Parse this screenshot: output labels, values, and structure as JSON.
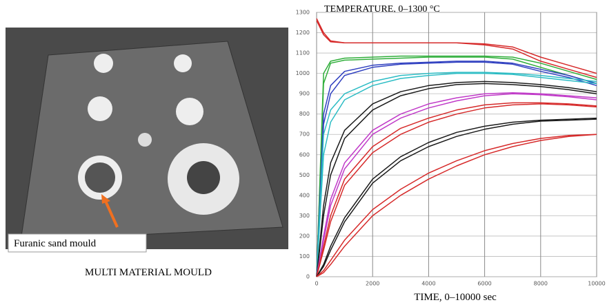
{
  "photo": {
    "annotation": "Furanic sand mould",
    "caption": "MULTI MATERIAL MOULD"
  },
  "chart_data": {
    "type": "line",
    "title": "TEMPERATURE, 0–1300 °C",
    "x_label": "TIME, 0–10000 sec",
    "x": [
      0,
      250,
      500,
      1000,
      2000,
      3000,
      4000,
      5000,
      6000,
      7000,
      8000,
      9000,
      10000
    ],
    "xlim": [
      0,
      10000
    ],
    "xticks": [
      0,
      2000,
      4000,
      6000,
      8000,
      10000
    ],
    "ylim": [
      0,
      1300
    ],
    "yticks": [
      0,
      100,
      200,
      300,
      400,
      500,
      600,
      700,
      800,
      900,
      1000,
      1100,
      1200,
      1300
    ],
    "grid": true,
    "series": [
      {
        "color": "#d62a2a",
        "values": [
          1270,
          1200,
          1160,
          1150,
          1150,
          1150,
          1150,
          1150,
          1145,
          1130,
          1080,
          1040,
          1000
        ]
      },
      {
        "color": "#d62a2a",
        "values": [
          1260,
          1190,
          1155,
          1150,
          1150,
          1150,
          1150,
          1150,
          1140,
          1120,
          1060,
          1020,
          980
        ]
      },
      {
        "color": "#2fae3a",
        "values": [
          0,
          1000,
          1060,
          1075,
          1080,
          1085,
          1085,
          1085,
          1085,
          1080,
          1050,
          1010,
          970
        ]
      },
      {
        "color": "#2fae3a",
        "values": [
          0,
          950,
          1050,
          1065,
          1070,
          1075,
          1080,
          1080,
          1080,
          1070,
          1030,
          990,
          950
        ]
      },
      {
        "color": "#3040c0",
        "values": [
          0,
          800,
          940,
          1010,
          1040,
          1050,
          1055,
          1060,
          1060,
          1050,
          1020,
          990,
          950
        ]
      },
      {
        "color": "#3040c0",
        "values": [
          0,
          750,
          900,
          990,
          1030,
          1045,
          1050,
          1055,
          1055,
          1045,
          1010,
          980,
          940
        ]
      },
      {
        "color": "#2bbcc4",
        "values": [
          0,
          700,
          820,
          900,
          960,
          990,
          1000,
          1005,
          1005,
          1000,
          990,
          975,
          960
        ]
      },
      {
        "color": "#2bbcc4",
        "values": [
          0,
          600,
          760,
          870,
          940,
          975,
          990,
          1000,
          1000,
          995,
          980,
          965,
          950
        ]
      },
      {
        "color": "#1a1a1a",
        "values": [
          0,
          350,
          560,
          720,
          850,
          910,
          940,
          955,
          960,
          955,
          945,
          930,
          910
        ]
      },
      {
        "color": "#1a1a1a",
        "values": [
          0,
          300,
          500,
          680,
          820,
          890,
          925,
          945,
          950,
          945,
          935,
          920,
          900
        ]
      },
      {
        "color": "#c03ac8",
        "values": [
          0,
          200,
          380,
          560,
          720,
          800,
          850,
          880,
          900,
          905,
          900,
          890,
          880
        ]
      },
      {
        "color": "#c03ac8",
        "values": [
          0,
          180,
          350,
          530,
          700,
          780,
          830,
          865,
          890,
          900,
          895,
          885,
          870
        ]
      },
      {
        "color": "#d62a2a",
        "values": [
          0,
          150,
          300,
          480,
          640,
          730,
          780,
          820,
          845,
          855,
          855,
          850,
          840
        ]
      },
      {
        "color": "#d62a2a",
        "values": [
          0,
          130,
          270,
          450,
          610,
          700,
          760,
          800,
          830,
          845,
          850,
          845,
          835
        ]
      },
      {
        "color": "#1a1a1a",
        "values": [
          0,
          60,
          150,
          290,
          480,
          590,
          660,
          710,
          740,
          760,
          770,
          775,
          780
        ]
      },
      {
        "color": "#1a1a1a",
        "values": [
          0,
          50,
          130,
          270,
          460,
          570,
          640,
          690,
          725,
          750,
          765,
          770,
          775
        ]
      },
      {
        "color": "#d62a2a",
        "values": [
          0,
          30,
          80,
          180,
          330,
          430,
          510,
          570,
          620,
          655,
          680,
          695,
          700
        ]
      },
      {
        "color": "#d62a2a",
        "values": [
          0,
          20,
          60,
          150,
          300,
          400,
          480,
          545,
          600,
          640,
          670,
          690,
          700
        ]
      }
    ]
  }
}
